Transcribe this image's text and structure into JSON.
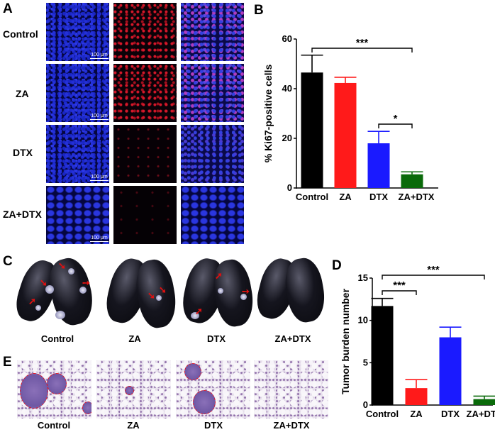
{
  "figure": {
    "panel_a": {
      "letter": "A",
      "row_labels": [
        "Control",
        "ZA",
        "DTX",
        "ZA+DTX"
      ],
      "scale_bar": "100 μm"
    },
    "panel_b": {
      "letter": "B"
    },
    "panel_c": {
      "letter": "C",
      "labels": [
        "Control",
        "ZA",
        "DTX",
        "ZA+DTX"
      ]
    },
    "panel_d": {
      "letter": "D"
    },
    "panel_e": {
      "letter": "E",
      "labels": [
        "Control",
        "ZA",
        "DTX",
        "ZA+DTX"
      ]
    }
  },
  "chart_data": [
    {
      "panel": "B",
      "type": "bar",
      "categories": [
        "Control",
        "ZA",
        "DTX",
        "ZA+DTX"
      ],
      "values": [
        46.5,
        42.3,
        18.0,
        5.5
      ],
      "errors": [
        7.0,
        2.3,
        4.8,
        1.0
      ],
      "colors": [
        "#000000",
        "#ff1a1a",
        "#1a1aff",
        "#0a6a0a"
      ],
      "ylabel": "% Ki67-positive cells",
      "ylim": [
        0,
        60
      ],
      "yticks": [
        0,
        20,
        40,
        60
      ],
      "significance": [
        {
          "from": "Control",
          "to": "ZA+DTX",
          "label": "***"
        },
        {
          "from": "DTX",
          "to": "ZA+DTX",
          "label": "*"
        }
      ]
    },
    {
      "panel": "D",
      "type": "bar",
      "categories": [
        "Control",
        "ZA",
        "DTX",
        "ZA+DTX"
      ],
      "values": [
        11.7,
        2.0,
        8.0,
        0.7
      ],
      "errors": [
        0.9,
        1.0,
        1.2,
        0.35
      ],
      "colors": [
        "#000000",
        "#ff1a1a",
        "#1a1aff",
        "#0a6a0a"
      ],
      "ylabel": "Tumor burden number",
      "ylim": [
        0,
        15
      ],
      "yticks": [
        0,
        5,
        10,
        15
      ],
      "significance": [
        {
          "from": "Control",
          "to": "ZA",
          "label": "***"
        },
        {
          "from": "Control",
          "to": "ZA+DTX",
          "label": "***"
        }
      ]
    }
  ]
}
